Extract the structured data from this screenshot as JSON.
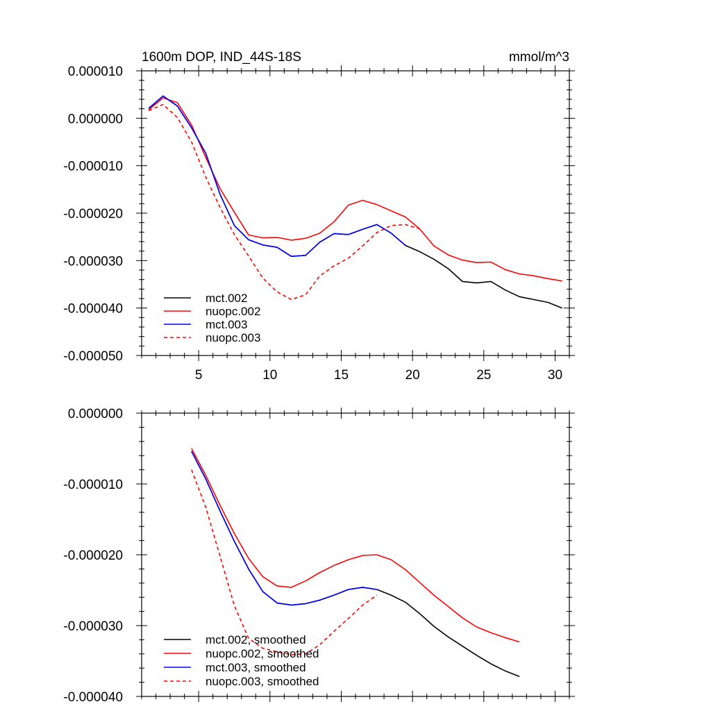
{
  "chart_data": [
    {
      "type": "line",
      "title": "1600m DOP, IND_44S-18S",
      "units": "mmol/m^3",
      "xlim": [
        1,
        31
      ],
      "ylim": [
        -5e-05,
        1e-05
      ],
      "xticks": [
        5,
        10,
        15,
        20,
        25,
        30
      ],
      "xtick_labels": [
        "5",
        "10",
        "15",
        "20",
        "25",
        "30"
      ],
      "yticks": [
        1e-05,
        0.0,
        -1e-05,
        -2e-05,
        -3e-05,
        -4e-05,
        -5e-05
      ],
      "ytick_labels": [
        "0.000010",
        "0.000000",
        "-0.000010",
        "-0.000020",
        "-0.000030",
        "-0.000040",
        "-0.000050"
      ],
      "legend_position": "bottom-left",
      "series": [
        {
          "name": "mct.002",
          "color": "#000000",
          "dash": "solid",
          "x": [
            1.5,
            2.5,
            3.5,
            4.5,
            5.5,
            6.5,
            7.5,
            8.5,
            9.5,
            10.5,
            11.5,
            12.5,
            13.5,
            14.5,
            15.5,
            16.5,
            17.5,
            18.5,
            19.5,
            20.5,
            21.5,
            22.5,
            23.5,
            24.5,
            25.5,
            26.5,
            27.5,
            28.5,
            29.5,
            30.5
          ],
          "values": [
            2.1e-06,
            4.7e-06,
            2.6e-06,
            -2e-06,
            -7.4e-06,
            -1.6e-05,
            -2.26e-05,
            -2.56e-05,
            -2.67e-05,
            -2.72e-05,
            -2.91e-05,
            -2.89e-05,
            -2.61e-05,
            -2.43e-05,
            -2.45e-05,
            -2.34e-05,
            -2.24e-05,
            -2.42e-05,
            -2.68e-05,
            -2.81e-05,
            -2.97e-05,
            -3.17e-05,
            -3.44e-05,
            -3.47e-05,
            -3.44e-05,
            -3.62e-05,
            -3.76e-05,
            -3.82e-05,
            -3.88e-05,
            -4e-05
          ]
        },
        {
          "name": "nuopc.002",
          "color": "#ff0000",
          "dash": "solid",
          "x": [
            1.5,
            2.5,
            3.5,
            4.5,
            5.5,
            6.5,
            7.5,
            8.5,
            9.5,
            10.5,
            11.5,
            12.5,
            13.5,
            14.5,
            15.5,
            16.5,
            17.5,
            18.5,
            19.5,
            20.5,
            21.5,
            22.5,
            23.5,
            24.5,
            25.5,
            26.5,
            27.5,
            28.5,
            29.5,
            30.5
          ],
          "values": [
            1.8e-06,
            4.3e-06,
            3.3e-06,
            -1.4e-06,
            -8.3e-06,
            -1.48e-05,
            -1.98e-05,
            -2.46e-05,
            -2.52e-05,
            -2.51e-05,
            -2.57e-05,
            -2.53e-05,
            -2.42e-05,
            -2.18e-05,
            -1.83e-05,
            -1.73e-05,
            -1.82e-05,
            -1.95e-05,
            -2.08e-05,
            -2.33e-05,
            -2.69e-05,
            -2.88e-05,
            -2.99e-05,
            -3.04e-05,
            -3.03e-05,
            -3.19e-05,
            -3.28e-05,
            -3.32e-05,
            -3.38e-05,
            -3.43e-05
          ]
        },
        {
          "name": "mct.003",
          "color": "#0000ff",
          "dash": "solid",
          "x": [
            1.5,
            2.5,
            3.5,
            4.5,
            5.5,
            6.5,
            7.5,
            8.5,
            9.5,
            10.5,
            11.5,
            12.5,
            13.5,
            14.5,
            15.5,
            16.5,
            17.5,
            18.5,
            19.5
          ],
          "values": [
            2.1e-06,
            4.7e-06,
            2.6e-06,
            -2e-06,
            -7.4e-06,
            -1.6e-05,
            -2.26e-05,
            -2.56e-05,
            -2.67e-05,
            -2.72e-05,
            -2.91e-05,
            -2.89e-05,
            -2.61e-05,
            -2.43e-05,
            -2.45e-05,
            -2.34e-05,
            -2.24e-05,
            -2.42e-05,
            -2.68e-05
          ]
        },
        {
          "name": "nuopc.003",
          "color": "#ff0000",
          "dash": "dashed",
          "x": [
            1.5,
            2.5,
            3.5,
            4.5,
            5.5,
            6.5,
            7.5,
            8.5,
            9.5,
            10.5,
            11.5,
            12.5,
            13.5,
            14.5,
            15.5,
            16.5,
            17.5,
            18.5,
            19.5,
            20.5
          ],
          "values": [
            1.6e-06,
            2.9e-06,
            2e-07,
            -5e-06,
            -1.24e-05,
            -1.88e-05,
            -2.45e-05,
            -2.9e-05,
            -3.37e-05,
            -3.66e-05,
            -3.82e-05,
            -3.72e-05,
            -3.32e-05,
            -3.11e-05,
            -2.95e-05,
            -2.69e-05,
            -2.41e-05,
            -2.26e-05,
            -2.24e-05,
            -2.33e-05
          ]
        }
      ]
    },
    {
      "type": "line",
      "title": "",
      "xlim": [
        1,
        31
      ],
      "ylim": [
        -4e-05,
        0.0
      ],
      "xticks": [
        5,
        10,
        15,
        20,
        25,
        30
      ],
      "xtick_labels": [],
      "yticks": [
        0.0,
        -1e-05,
        -2e-05,
        -3e-05,
        -4e-05
      ],
      "ytick_labels": [
        "0.000000",
        "-0.000010",
        "-0.000020",
        "-0.000030",
        "-0.000040"
      ],
      "legend_position": "bottom-left",
      "series": [
        {
          "name": "mct.002, smoothed",
          "color": "#000000",
          "dash": "solid",
          "x": [
            4.5,
            5.5,
            6.5,
            7.5,
            8.5,
            9.5,
            10.5,
            11.5,
            12.5,
            13.5,
            14.5,
            15.5,
            16.5,
            17.5,
            18.5,
            19.5,
            20.5,
            21.5,
            22.5,
            23.5,
            24.5,
            25.5,
            26.5,
            27.5
          ],
          "values": [
            -5.4e-06,
            -9.3e-06,
            -1.38e-05,
            -1.81e-05,
            -2.2e-05,
            -2.52e-05,
            -2.68e-05,
            -2.71e-05,
            -2.69e-05,
            -2.64e-05,
            -2.57e-05,
            -2.49e-05,
            -2.46e-05,
            -2.49e-05,
            -2.57e-05,
            -2.67e-05,
            -2.83e-05,
            -3.01e-05,
            -3.16e-05,
            -3.29e-05,
            -3.42e-05,
            -3.54e-05,
            -3.64e-05,
            -3.72e-05
          ]
        },
        {
          "name": "nuopc.002, smoothed",
          "color": "#ff0000",
          "dash": "solid",
          "x": [
            4.5,
            5.5,
            6.5,
            7.5,
            8.5,
            9.5,
            10.5,
            11.5,
            12.5,
            13.5,
            14.5,
            15.5,
            16.5,
            17.5,
            18.5,
            19.5,
            20.5,
            21.5,
            22.5,
            23.5,
            24.5,
            25.5,
            26.5,
            27.5
          ],
          "values": [
            -5e-06,
            -8.8e-06,
            -1.3e-05,
            -1.7e-05,
            -2.05e-05,
            -2.31e-05,
            -2.44e-05,
            -2.46e-05,
            -2.37e-05,
            -2.25e-05,
            -2.15e-05,
            -2.07e-05,
            -2.01e-05,
            -2e-05,
            -2.07e-05,
            -2.21e-05,
            -2.39e-05,
            -2.57e-05,
            -2.73e-05,
            -2.89e-05,
            -3.02e-05,
            -3.1e-05,
            -3.17e-05,
            -3.23e-05
          ]
        },
        {
          "name": "mct.003, smoothed",
          "color": "#0000ff",
          "dash": "solid",
          "x": [
            4.5,
            5.5,
            6.5,
            7.5,
            8.5,
            9.5,
            10.5,
            11.5,
            12.5,
            13.5,
            14.5,
            15.5,
            16.5,
            17.5
          ],
          "values": [
            -5.4e-06,
            -9.3e-06,
            -1.38e-05,
            -1.81e-05,
            -2.2e-05,
            -2.52e-05,
            -2.68e-05,
            -2.71e-05,
            -2.69e-05,
            -2.64e-05,
            -2.57e-05,
            -2.49e-05,
            -2.46e-05,
            -2.49e-05
          ]
        },
        {
          "name": "nuopc.003, smoothed",
          "color": "#ff0000",
          "dash": "dashed",
          "x": [
            4.5,
            5.5,
            6.5,
            7.5,
            8.5,
            9.5,
            10.5,
            11.5,
            12.5,
            13.5,
            14.5,
            15.5,
            16.5,
            17.5
          ],
          "values": [
            -8e-06,
            -1.33e-05,
            -2.02e-05,
            -2.72e-05,
            -3.18e-05,
            -3.32e-05,
            -3.37e-05,
            -3.41e-05,
            -3.4e-05,
            -3.27e-05,
            -3.08e-05,
            -2.9e-05,
            -2.71e-05,
            -2.57e-05
          ]
        }
      ]
    }
  ]
}
